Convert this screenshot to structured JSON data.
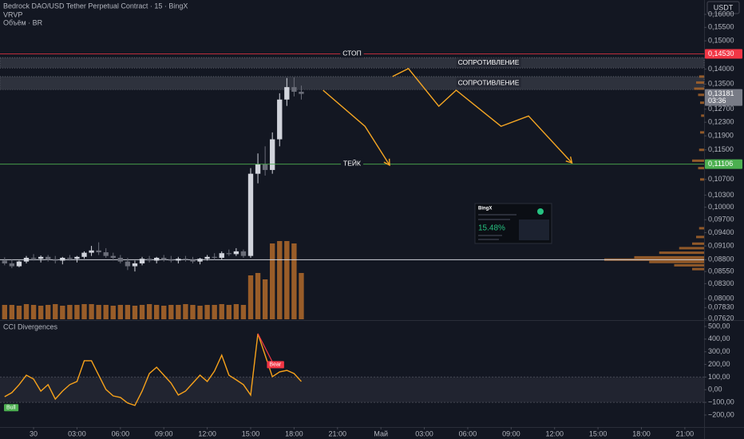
{
  "header": {
    "title": "Bedrock DAO/USD Tether Perpetual Contract · 15 · BingX",
    "indicators": [
      "VRVP",
      "Объём · BR"
    ],
    "currency": "USDT"
  },
  "chart_data": [
    {
      "type": "candlestick",
      "x": [
        -2,
        -1.5,
        -1,
        -0.5,
        0,
        0.5,
        1,
        1.5,
        2,
        2.5,
        3,
        3.5,
        4,
        4.5,
        5,
        5.5,
        6,
        6.5,
        7,
        7.5,
        8,
        8.5,
        9,
        9.5,
        10,
        10.5,
        11,
        11.5,
        12,
        12.5,
        13,
        13.5,
        14,
        14.5,
        15,
        15.5,
        16,
        16.5,
        17,
        17.5,
        18,
        18.5
      ],
      "open": [
        0.0878,
        0.0872,
        0.0866,
        0.0876,
        0.0884,
        0.0882,
        0.0886,
        0.088,
        0.0878,
        0.0884,
        0.0882,
        0.0886,
        0.0895,
        0.09,
        0.0896,
        0.0888,
        0.0884,
        0.0876,
        0.0866,
        0.0872,
        0.0882,
        0.0878,
        0.0884,
        0.088,
        0.0878,
        0.0882,
        0.088,
        0.0876,
        0.0882,
        0.0886,
        0.0884,
        0.0894,
        0.0892,
        0.0898,
        0.0888,
        0.1085,
        0.111,
        0.1095,
        0.118,
        0.13,
        0.134,
        0.1325
      ],
      "high": [
        0.0885,
        0.088,
        0.0878,
        0.0888,
        0.0892,
        0.0889,
        0.089,
        0.0888,
        0.0886,
        0.089,
        0.0888,
        0.0898,
        0.091,
        0.0918,
        0.0905,
        0.0895,
        0.089,
        0.0884,
        0.0878,
        0.0886,
        0.0888,
        0.0886,
        0.089,
        0.0888,
        0.0886,
        0.0888,
        0.0886,
        0.0884,
        0.089,
        0.0894,
        0.0898,
        0.0902,
        0.0905,
        0.0902,
        0.11,
        0.114,
        0.116,
        0.12,
        0.132,
        0.137,
        0.1372,
        0.1345
      ],
      "low": [
        0.0868,
        0.0862,
        0.0864,
        0.0872,
        0.0878,
        0.0874,
        0.0876,
        0.0872,
        0.087,
        0.0878,
        0.0874,
        0.0882,
        0.0888,
        0.089,
        0.0884,
        0.0878,
        0.0872,
        0.0858,
        0.0855,
        0.0868,
        0.0874,
        0.0872,
        0.0876,
        0.0874,
        0.0872,
        0.0876,
        0.0872,
        0.087,
        0.0878,
        0.088,
        0.088,
        0.0888,
        0.0888,
        0.0884,
        0.0884,
        0.106,
        0.108,
        0.1085,
        0.116,
        0.128,
        0.131,
        0.13
      ],
      "close": [
        0.0872,
        0.0866,
        0.0876,
        0.0884,
        0.0882,
        0.0886,
        0.088,
        0.0878,
        0.0884,
        0.0882,
        0.0886,
        0.0895,
        0.09,
        0.0896,
        0.0888,
        0.0884,
        0.0876,
        0.0866,
        0.0872,
        0.0882,
        0.0878,
        0.0884,
        0.088,
        0.0878,
        0.0882,
        0.088,
        0.0876,
        0.0882,
        0.0886,
        0.0884,
        0.0894,
        0.0892,
        0.0898,
        0.0888,
        0.1085,
        0.111,
        0.1095,
        0.118,
        0.13,
        0.134,
        0.1325,
        0.1318
      ],
      "up_color": "#d1d4dc",
      "down_color": "#6a6d78",
      "volume": [
        18,
        18,
        17,
        19,
        18,
        17,
        18,
        19,
        17,
        18,
        18,
        19,
        19,
        18,
        18,
        17,
        18,
        18,
        17,
        18,
        19,
        18,
        17,
        18,
        18,
        19,
        18,
        17,
        18,
        18,
        19,
        18,
        19,
        18,
        55,
        58,
        50,
        95,
        98,
        98,
        95,
        58
      ],
      "volume_color": "#a8652a",
      "volume_lim": [
        0,
        100
      ],
      "xlim": [
        -2.32,
        46.33
      ],
      "xticks": [
        {
          "value": 0,
          "label": "30"
        },
        {
          "value": 3,
          "label": "03:00"
        },
        {
          "value": 6,
          "label": "06:00"
        },
        {
          "value": 9,
          "label": "09:00"
        },
        {
          "value": 12,
          "label": "12:00"
        },
        {
          "value": 15,
          "label": "15:00"
        },
        {
          "value": 18,
          "label": "18:00"
        },
        {
          "value": 21,
          "label": "21:00"
        },
        {
          "value": 24,
          "label": "Май"
        },
        {
          "value": 27,
          "label": "03:00"
        },
        {
          "value": 30,
          "label": "06:00"
        },
        {
          "value": 33,
          "label": "09:00"
        },
        {
          "value": 36,
          "label": "12:00"
        },
        {
          "value": 39,
          "label": "15:00"
        },
        {
          "value": 42,
          "label": "18:00"
        },
        {
          "value": 45,
          "label": "21:00"
        }
      ],
      "ylim": [
        0.0761,
        0.1657
      ],
      "log_scale": true,
      "yticks": [
        {
          "value": 0.16,
          "label": "0,16000"
        },
        {
          "value": 0.155,
          "label": "0,15500"
        },
        {
          "value": 0.15,
          "label": "0,15000"
        },
        {
          "value": 0.14,
          "label": "0,14000"
        },
        {
          "value": 0.135,
          "label": "0,13500"
        },
        {
          "value": 0.127,
          "label": "0,12700"
        },
        {
          "value": 0.123,
          "label": "0,12300"
        },
        {
          "value": 0.119,
          "label": "0,11900"
        },
        {
          "value": 0.115,
          "label": "0,11500"
        },
        {
          "value": 0.107,
          "label": "0,10700"
        },
        {
          "value": 0.103,
          "label": "0,10300"
        },
        {
          "value": 0.1,
          "label": "0,10000"
        },
        {
          "value": 0.097,
          "label": "0,09700"
        },
        {
          "value": 0.094,
          "label": "0,09400"
        },
        {
          "value": 0.091,
          "label": "0,09100"
        },
        {
          "value": 0.088,
          "label": "0,08800"
        },
        {
          "value": 0.0855,
          "label": "0,08550"
        },
        {
          "value": 0.083,
          "label": "0,08300"
        },
        {
          "value": 0.08,
          "label": "0,08000"
        },
        {
          "value": 0.0783,
          "label": "0,07830"
        },
        {
          "value": 0.0762,
          "label": "0,07620"
        }
      ],
      "levels": [
        {
          "label": "СТОП",
          "value": 0.1453,
          "value_label": "0,14530",
          "color": "#f23645"
        },
        {
          "label": "ТЕЙК",
          "value": 0.11106,
          "value_label": "0,11106",
          "color": "#4caf50"
        }
      ],
      "poc": {
        "value": 0.088,
        "color": "#d1d4dc"
      },
      "zones": [
        {
          "label": "СОПРОТИВЛЕНИЕ",
          "low": 0.1404,
          "high": 0.144
        },
        {
          "label": "СОПРОТИВЛЕНИЕ",
          "low": 0.1332,
          "high": 0.1375
        }
      ],
      "projections": [
        {
          "x": [
            20.0,
            22.9,
            24.6
          ],
          "y": [
            0.133,
            0.1218,
            0.1108
          ]
        },
        {
          "x": [
            24.8,
            25.9,
            28.0,
            29.2,
            32.3,
            34.2,
            37.2
          ],
          "y": [
            0.1375,
            0.1402,
            0.1279,
            0.133,
            0.1218,
            0.1249,
            0.1114
          ]
        }
      ],
      "projection_color": "#f5a623",
      "profile": {
        "prices": [
          0.1375,
          0.1355,
          0.1335,
          0.1315,
          0.129,
          0.125,
          0.12,
          0.115,
          0.112,
          0.11,
          0.107,
          0.095,
          0.093,
          0.0915,
          0.0905,
          0.0895,
          0.0885,
          0.088,
          0.0875,
          0.0868,
          0.086
        ],
        "values": [
          5,
          8,
          10,
          6,
          4,
          3,
          4,
          5,
          12,
          6,
          4,
          5,
          8,
          12,
          25,
          45,
          70,
          100,
          55,
          30,
          12
        ],
        "color": "#a8652a",
        "lim": [
          0,
          100
        ]
      },
      "last_price": {
        "value": 0.13181,
        "label": "0,13181",
        "countdown": "03:36"
      }
    },
    {
      "type": "line",
      "title": "CCI Divergences",
      "x": [
        -2,
        -1.5,
        -1,
        -0.5,
        0,
        0.5,
        1,
        1.5,
        2,
        2.5,
        3,
        3.5,
        4,
        4.5,
        5,
        5.5,
        6,
        6.5,
        7,
        7.5,
        8,
        8.5,
        9,
        9.5,
        10,
        10.5,
        11,
        11.5,
        12,
        12.5,
        13,
        13.5,
        14,
        14.5,
        15,
        15.5,
        16,
        16.5,
        17,
        17.5,
        18,
        18.5
      ],
      "values": [
        -55,
        -23,
        40,
        115,
        84,
        -11,
        40,
        -74,
        -11,
        40,
        65,
        229,
        229,
        115,
        2,
        -49,
        -61,
        -105,
        -124,
        -11,
        128,
        178,
        115,
        52,
        -42,
        -11,
        52,
        115,
        65,
        147,
        273,
        115,
        78,
        40,
        -42,
        443,
        273,
        103,
        141,
        153,
        128,
        65
      ],
      "color": "#f7a21b",
      "xlim": [
        -2.32,
        46.33
      ],
      "ylim": [
        -295,
        538
      ],
      "yticks": [
        {
          "value": 500,
          "label": "500,00"
        },
        {
          "value": 400,
          "label": "400,00"
        },
        {
          "value": 300,
          "label": "300,00"
        },
        {
          "value": 200,
          "label": "200,00"
        },
        {
          "value": 100,
          "label": "100,00"
        },
        {
          "value": 0,
          "label": "0,00"
        },
        {
          "value": -100,
          "label": "−100,00"
        },
        {
          "value": -200,
          "label": "−200,00"
        }
      ],
      "band": [
        -100,
        100
      ],
      "divergence": {
        "x": [
          15.5,
          16.7
        ],
        "y": [
          443,
          175
        ],
        "label": "Bear",
        "color": "#f23645"
      },
      "signal": {
        "x": -2,
        "y": -140,
        "label": "Bull",
        "color": "#4caf50"
      }
    }
  ],
  "thumbnail": {
    "brand": "BingX",
    "gain": "15.48%"
  }
}
